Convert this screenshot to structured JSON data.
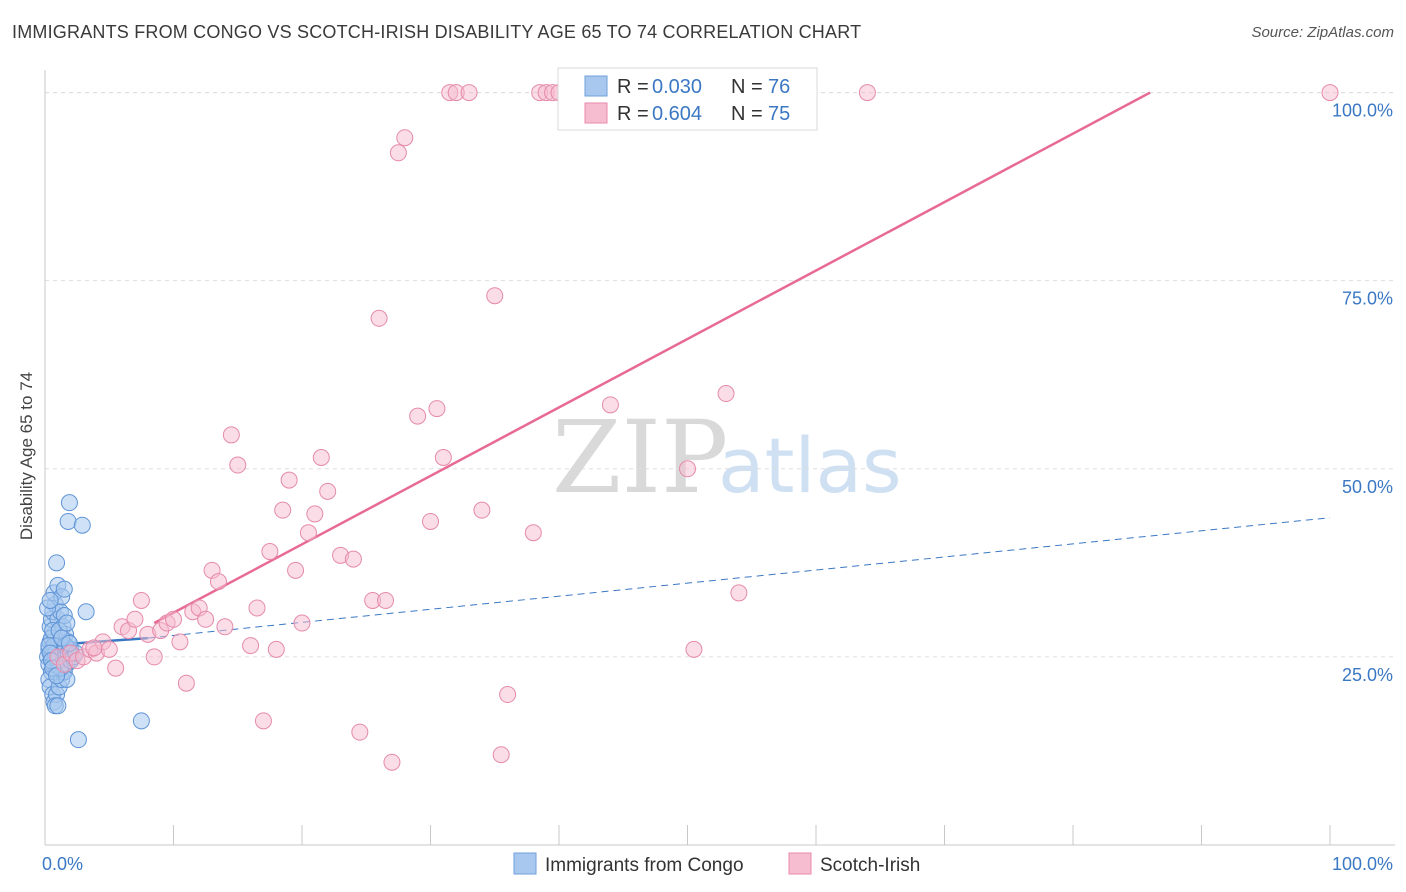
{
  "header": {
    "title": "IMMIGRANTS FROM CONGO VS SCOTCH-IRISH DISABILITY AGE 65 TO 74 CORRELATION CHART",
    "source": "Source: ZipAtlas.com"
  },
  "watermark": {
    "zip": "ZIP",
    "atlas": "atlas"
  },
  "colors": {
    "blue": "#3b78c4",
    "blue_fill": "#a8c8ef",
    "pink": "#e86a94",
    "pink_fill": "#f6bcd0",
    "grid": "#dddddd"
  },
  "legend": {
    "rows": [
      {
        "r_label": "R = ",
        "r_value": "0.030",
        "n_label": "N = ",
        "n_value": "76"
      },
      {
        "r_label": "R = ",
        "r_value": "0.604",
        "n_label": "N = ",
        "n_value": "75"
      }
    ]
  },
  "chart_data": {
    "type": "scatter",
    "title": "IMMIGRANTS FROM CONGO VS SCOTCH-IRISH DISABILITY AGE 65 TO 74 CORRELATION CHART",
    "xlabel": "",
    "ylabel": "Disability Age 65 to 74",
    "xlim": [
      0,
      100
    ],
    "ylim": [
      0,
      103
    ],
    "x_tick_labels": [
      "0.0%",
      "100.0%"
    ],
    "y_tick_labels": [
      "25.0%",
      "50.0%",
      "75.0%",
      "100.0%"
    ],
    "y_ticks": [
      25,
      50,
      75,
      100
    ],
    "legend_labels": [
      "Immigrants from Congo",
      "Scotch-Irish"
    ],
    "series": [
      {
        "name": "Immigrants from Congo",
        "R": 0.03,
        "N": 76,
        "trend": {
          "x_solid": [
            0,
            8
          ],
          "y_solid": [
            26.5,
            27.5
          ],
          "x_dashed": [
            8,
            100
          ],
          "y_dashed": [
            27.5,
            43.5
          ]
        },
        "points": [
          [
            0.2,
            25
          ],
          [
            0.3,
            24
          ],
          [
            0.3,
            26
          ],
          [
            0.4,
            27
          ],
          [
            0.5,
            23
          ],
          [
            0.5,
            25
          ],
          [
            0.6,
            24
          ],
          [
            0.6,
            26
          ],
          [
            0.7,
            28
          ],
          [
            0.8,
            25
          ],
          [
            0.9,
            23
          ],
          [
            1,
            24
          ],
          [
            1,
            26
          ],
          [
            1.1,
            27
          ],
          [
            1.2,
            25
          ],
          [
            1.3,
            24
          ],
          [
            1.4,
            23
          ],
          [
            1.5,
            26
          ],
          [
            1.6,
            25
          ],
          [
            1.7,
            24
          ],
          [
            0.4,
            29
          ],
          [
            0.5,
            30
          ],
          [
            0.6,
            31
          ],
          [
            0.8,
            32
          ],
          [
            1.0,
            30
          ],
          [
            1.2,
            31
          ],
          [
            1.4,
            29
          ],
          [
            1.6,
            28
          ],
          [
            1.8,
            27
          ],
          [
            2.0,
            26
          ],
          [
            0.3,
            22
          ],
          [
            0.4,
            21
          ],
          [
            0.6,
            20
          ],
          [
            0.7,
            19
          ],
          [
            0.9,
            20
          ],
          [
            1.1,
            21
          ],
          [
            1.3,
            22
          ],
          [
            1.5,
            23
          ],
          [
            1.7,
            22
          ],
          [
            0.8,
            18.5
          ],
          [
            0.7,
            33.5
          ],
          [
            1.0,
            34.5
          ],
          [
            1.3,
            33
          ],
          [
            1.5,
            34
          ],
          [
            0.9,
            37.5
          ],
          [
            1.9,
            45.5
          ],
          [
            1.8,
            43
          ],
          [
            2.9,
            42.5
          ],
          [
            3.2,
            31
          ],
          [
            7.5,
            16.5
          ],
          [
            2.6,
            14
          ],
          [
            1.0,
            18.5
          ],
          [
            0.5,
            27.5
          ],
          [
            0.6,
            28.5
          ],
          [
            0.7,
            26.5
          ],
          [
            0.8,
            25.5
          ],
          [
            1.0,
            24.5
          ],
          [
            1.2,
            23.5
          ],
          [
            1.4,
            25.5
          ],
          [
            1.6,
            26.5
          ],
          [
            1.8,
            25.5
          ],
          [
            2.0,
            24.5
          ],
          [
            2.2,
            25
          ],
          [
            0.3,
            26.5
          ],
          [
            0.4,
            25.5
          ],
          [
            0.5,
            24.5
          ],
          [
            0.6,
            23.5
          ],
          [
            0.9,
            22.5
          ],
          [
            1.1,
            28.5
          ],
          [
            1.3,
            27.5
          ],
          [
            1.5,
            30.5
          ],
          [
            1.7,
            29.5
          ],
          [
            0.2,
            31.5
          ],
          [
            0.4,
            32.5
          ],
          [
            2.4,
            25.5
          ],
          [
            1.9,
            26.8
          ]
        ]
      },
      {
        "name": "Scotch-Irish",
        "R": 0.604,
        "N": 75,
        "trend": {
          "x": [
            8.5,
            86
          ],
          "y": [
            29.5,
            100
          ]
        },
        "points": [
          [
            1,
            25
          ],
          [
            1.5,
            24
          ],
          [
            2,
            25.5
          ],
          [
            2.5,
            24.5
          ],
          [
            3,
            25
          ],
          [
            3.5,
            26
          ],
          [
            4,
            25.5
          ],
          [
            4.5,
            27
          ],
          [
            5,
            26
          ],
          [
            5.5,
            23.5
          ],
          [
            6,
            29
          ],
          [
            6.5,
            28.5
          ],
          [
            7,
            30
          ],
          [
            7.5,
            32.5
          ],
          [
            8,
            28
          ],
          [
            8.5,
            25
          ],
          [
            9,
            28.5
          ],
          [
            9.5,
            29.5
          ],
          [
            10,
            30
          ],
          [
            10.5,
            27
          ],
          [
            11,
            21.5
          ],
          [
            11.5,
            31
          ],
          [
            12,
            31.5
          ],
          [
            12.5,
            30
          ],
          [
            13,
            36.5
          ],
          [
            13.5,
            35
          ],
          [
            14,
            29
          ],
          [
            14.5,
            54.5
          ],
          [
            15,
            50.5
          ],
          [
            16,
            26.5
          ],
          [
            16.5,
            31.5
          ],
          [
            17,
            16.5
          ],
          [
            17.5,
            39
          ],
          [
            18,
            26
          ],
          [
            18.5,
            44.5
          ],
          [
            19,
            48.5
          ],
          [
            19.5,
            36.5
          ],
          [
            20,
            29.5
          ],
          [
            20.5,
            41.5
          ],
          [
            21,
            44
          ],
          [
            21.5,
            51.5
          ],
          [
            22,
            47
          ],
          [
            23,
            38.5
          ],
          [
            24,
            38
          ],
          [
            24.5,
            15
          ],
          [
            25.5,
            32.5
          ],
          [
            26,
            70
          ],
          [
            26.5,
            32.5
          ],
          [
            27,
            11
          ],
          [
            27.5,
            92
          ],
          [
            28,
            94
          ],
          [
            29,
            57
          ],
          [
            30,
            43
          ],
          [
            30.5,
            58
          ],
          [
            31,
            51.5
          ],
          [
            31.5,
            100
          ],
          [
            32,
            100
          ],
          [
            33,
            100
          ],
          [
            34,
            44.5
          ],
          [
            35,
            73
          ],
          [
            35.5,
            12
          ],
          [
            36,
            20
          ],
          [
            38,
            41.5
          ],
          [
            38.5,
            100
          ],
          [
            39,
            100
          ],
          [
            39.5,
            100
          ],
          [
            40,
            100
          ],
          [
            44,
            58.5
          ],
          [
            50,
            50
          ],
          [
            50.5,
            26
          ],
          [
            53,
            60
          ],
          [
            54,
            33.5
          ],
          [
            64,
            100
          ],
          [
            100,
            100
          ],
          [
            3.8,
            26.2
          ]
        ]
      }
    ]
  }
}
